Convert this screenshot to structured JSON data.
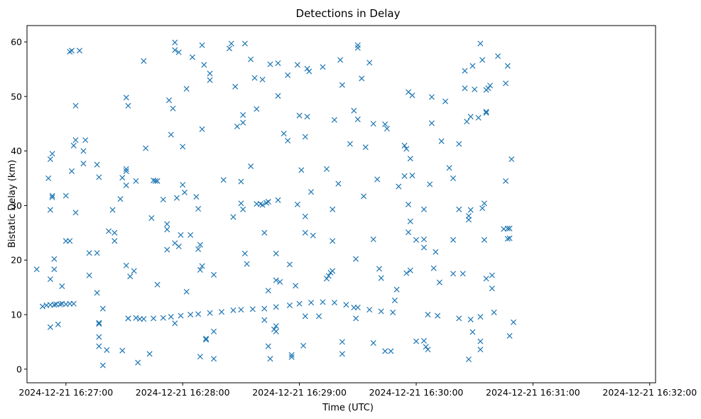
{
  "chart_data": {
    "type": "scatter",
    "title": "Detections in Delay",
    "xlabel": "Time (UTC)",
    "ylabel": "Bistatic Delay (km)",
    "marker": "x",
    "color": "#1f77b4",
    "xlim_seconds_after_16_26_00": [
      40,
      363
    ],
    "ylim": [
      -2.5,
      63
    ],
    "grid": false,
    "x_ticks": [
      {
        "value": 60,
        "label": "2024-12-21 16:27:00"
      },
      {
        "value": 120,
        "label": "2024-12-21 16:28:00"
      },
      {
        "value": 180,
        "label": "2024-12-21 16:29:00"
      },
      {
        "value": 240,
        "label": "2024-12-21 16:30:00"
      },
      {
        "value": 300,
        "label": "2024-12-21 16:31:00"
      },
      {
        "value": 360,
        "label": "2024-12-21 16:32:00"
      }
    ],
    "y_ticks": [
      {
        "value": 0,
        "label": "0"
      },
      {
        "value": 10,
        "label": "10"
      },
      {
        "value": 20,
        "label": "20"
      },
      {
        "value": 30,
        "label": "30"
      },
      {
        "value": 40,
        "label": "40"
      },
      {
        "value": 50,
        "label": "50"
      },
      {
        "value": 60,
        "label": "60"
      }
    ],
    "x_units": "seconds after 2024-12-21 16:26:00 UTC",
    "points": [
      [
        45,
        18.3
      ],
      [
        51,
        35
      ],
      [
        52,
        38.5
      ],
      [
        52,
        16.5
      ],
      [
        52,
        7.7
      ],
      [
        52,
        29.2
      ],
      [
        53,
        39.5
      ],
      [
        53,
        31.5
      ],
      [
        53,
        31.8
      ],
      [
        54,
        18.3
      ],
      [
        54,
        20.2
      ],
      [
        56,
        8.2
      ],
      [
        58,
        15.2
      ],
      [
        60,
        31.8
      ],
      [
        60,
        23.5
      ],
      [
        62,
        23.5
      ],
      [
        62,
        58.2
      ],
      [
        63,
        58.4
      ],
      [
        63,
        36.3
      ],
      [
        64,
        41
      ],
      [
        64,
        12
      ],
      [
        65,
        28.7
      ],
      [
        65,
        42
      ],
      [
        65,
        48.3
      ],
      [
        67,
        58.4
      ],
      [
        69,
        40
      ],
      [
        69,
        37.7
      ],
      [
        70,
        42
      ],
      [
        72,
        17.2
      ],
      [
        72,
        21.3
      ],
      [
        76,
        21.3
      ],
      [
        76,
        14
      ],
      [
        76,
        37.5
      ],
      [
        77,
        35.2
      ],
      [
        77,
        8.3
      ],
      [
        77,
        8.5
      ],
      [
        77,
        5.9
      ],
      [
        77,
        4.2
      ],
      [
        79,
        11.1
      ],
      [
        79,
        0.7
      ],
      [
        81,
        3.5
      ],
      [
        82,
        25.3
      ],
      [
        84,
        29.2
      ],
      [
        85,
        23.5
      ],
      [
        85,
        25
      ],
      [
        88,
        31.2
      ],
      [
        89,
        35.1
      ],
      [
        89,
        3.4
      ],
      [
        91,
        49.8
      ],
      [
        91,
        36.7
      ],
      [
        91,
        36.3
      ],
      [
        91,
        33.7
      ],
      [
        91,
        19
      ],
      [
        92,
        9.3
      ],
      [
        92,
        48.3
      ],
      [
        93,
        17
      ],
      [
        95,
        18
      ],
      [
        96,
        34.5
      ],
      [
        97,
        1.2
      ],
      [
        98,
        9.2
      ],
      [
        100,
        56.5
      ],
      [
        101,
        40.5
      ],
      [
        103,
        2.8
      ],
      [
        104,
        27.7
      ],
      [
        105,
        34.6
      ],
      [
        106,
        34.5
      ],
      [
        107,
        34.5
      ],
      [
        107,
        15.5
      ],
      [
        110,
        31.1
      ],
      [
        112,
        26.6
      ],
      [
        112,
        25.6
      ],
      [
        112,
        21.9
      ],
      [
        113,
        49.3
      ],
      [
        114,
        43
      ],
      [
        115,
        47.8
      ],
      [
        116,
        59.9
      ],
      [
        116,
        58.5
      ],
      [
        116,
        23.1
      ],
      [
        116,
        8.4
      ],
      [
        117,
        31.4
      ],
      [
        118,
        58.1
      ],
      [
        118,
        22.5
      ],
      [
        119,
        24.6
      ],
      [
        120,
        33.8
      ],
      [
        120,
        40.8
      ],
      [
        121,
        32.4
      ],
      [
        122,
        51.4
      ],
      [
        122,
        14.2
      ],
      [
        124,
        24.6
      ],
      [
        125,
        57.2
      ],
      [
        127,
        31.6
      ],
      [
        128,
        29.4
      ],
      [
        128,
        22
      ],
      [
        129,
        22.8
      ],
      [
        129,
        18.2
      ],
      [
        129,
        2.3
      ],
      [
        130,
        59.4
      ],
      [
        130,
        44
      ],
      [
        130,
        18.9
      ],
      [
        131,
        55.8
      ],
      [
        132,
        5.6
      ],
      [
        132,
        5.4
      ],
      [
        134,
        54.2
      ],
      [
        134,
        53
      ],
      [
        136,
        17.3
      ],
      [
        136,
        6.9
      ],
      [
        136,
        1.9
      ],
      [
        141,
        34.7
      ],
      [
        144,
        58.8
      ],
      [
        145,
        59.7
      ],
      [
        146,
        27.9
      ],
      [
        147,
        51.8
      ],
      [
        148,
        44.5
      ],
      [
        150,
        34.4
      ],
      [
        150,
        30.4
      ],
      [
        151,
        29.3
      ],
      [
        151,
        45.2
      ],
      [
        151,
        46.6
      ],
      [
        152,
        21.2
      ],
      [
        152,
        59.7
      ],
      [
        153,
        19.3
      ],
      [
        155,
        56.8
      ],
      [
        155,
        37.2
      ],
      [
        157,
        53.4
      ],
      [
        158,
        30.3
      ],
      [
        158,
        47.7
      ],
      [
        160,
        30.3
      ],
      [
        161,
        53.1
      ],
      [
        161,
        30.1
      ],
      [
        162,
        25
      ],
      [
        162,
        9
      ],
      [
        163,
        30.5
      ],
      [
        164,
        30.7
      ],
      [
        164,
        14.4
      ],
      [
        164,
        4.2
      ],
      [
        165,
        55.9
      ],
      [
        165,
        1.9
      ],
      [
        167,
        7.3
      ],
      [
        168,
        21.2
      ],
      [
        168,
        16.3
      ],
      [
        168,
        7.9
      ],
      [
        168,
        6.9
      ],
      [
        169,
        56.1
      ],
      [
        169,
        31
      ],
      [
        169,
        50.1
      ],
      [
        170,
        16
      ],
      [
        172,
        43.2
      ],
      [
        174,
        53.9
      ],
      [
        174,
        41.9
      ],
      [
        175,
        19.2
      ],
      [
        176,
        2.2
      ],
      [
        176,
        2.6
      ],
      [
        178,
        15.3
      ],
      [
        179,
        55.8
      ],
      [
        179,
        30.2
      ],
      [
        180,
        46.5
      ],
      [
        181,
        36.5
      ],
      [
        182,
        4.3
      ],
      [
        183,
        25
      ],
      [
        183,
        28
      ],
      [
        183,
        42.6
      ],
      [
        183,
        9.7
      ],
      [
        184,
        46.3
      ],
      [
        184,
        55.1
      ],
      [
        185,
        54.6
      ],
      [
        186,
        32.5
      ],
      [
        187,
        24.5
      ],
      [
        190,
        9.7
      ],
      [
        192,
        55.4
      ],
      [
        194,
        36.7
      ],
      [
        194,
        16.6
      ],
      [
        195,
        17.1
      ],
      [
        196,
        17.7
      ],
      [
        197,
        23.5
      ],
      [
        197,
        29.3
      ],
      [
        197,
        18
      ],
      [
        198,
        45.7
      ],
      [
        200,
        34
      ],
      [
        201,
        56.7
      ],
      [
        202,
        52.1
      ],
      [
        202,
        5
      ],
      [
        202,
        2.8
      ],
      [
        206,
        41.3
      ],
      [
        208,
        47.4
      ],
      [
        208,
        11.3
      ],
      [
        209,
        20.2
      ],
      [
        209,
        9.3
      ],
      [
        210,
        59.4
      ],
      [
        210,
        58.9
      ],
      [
        210,
        45.8
      ],
      [
        212,
        53.3
      ],
      [
        213,
        31.7
      ],
      [
        214,
        40.7
      ],
      [
        216,
        56.2
      ],
      [
        218,
        23.8
      ],
      [
        218,
        4.8
      ],
      [
        218,
        45
      ],
      [
        220,
        34.8
      ],
      [
        221,
        18.4
      ],
      [
        222,
        16.7
      ],
      [
        224,
        44.9
      ],
      [
        224,
        3.3
      ],
      [
        225,
        44.1
      ],
      [
        227,
        3.3
      ],
      [
        229,
        12.6
      ],
      [
        230,
        14.6
      ],
      [
        231,
        33.5
      ],
      [
        234,
        35.4
      ],
      [
        234,
        41
      ],
      [
        235,
        40.4
      ],
      [
        235,
        17.6
      ],
      [
        236,
        30.2
      ],
      [
        236,
        25.1
      ],
      [
        236,
        50.8
      ],
      [
        237,
        27.1
      ],
      [
        237,
        18.1
      ],
      [
        237,
        38.6
      ],
      [
        238,
        35.5
      ],
      [
        238,
        50.2
      ],
      [
        240,
        23.7
      ],
      [
        240,
        5.1
      ],
      [
        244,
        29.3
      ],
      [
        244,
        23.8
      ],
      [
        244,
        22.3
      ],
      [
        244,
        5.2
      ],
      [
        245,
        4.1
      ],
      [
        246,
        3.6
      ],
      [
        247,
        33.9
      ],
      [
        248,
        49.9
      ],
      [
        248,
        45.1
      ],
      [
        249,
        18.5
      ],
      [
        250,
        21.5
      ],
      [
        252,
        15.9
      ],
      [
        253,
        41.8
      ],
      [
        255,
        49.1
      ],
      [
        257,
        36.9
      ],
      [
        259,
        35
      ],
      [
        259,
        23.7
      ],
      [
        259,
        17.5
      ],
      [
        262,
        29.3
      ],
      [
        262,
        41.3
      ],
      [
        264,
        17.5
      ],
      [
        265,
        54.7
      ],
      [
        265,
        51.5
      ],
      [
        266,
        45.4
      ],
      [
        267,
        28.1
      ],
      [
        267,
        27.4
      ],
      [
        267,
        1.8
      ],
      [
        268,
        29.2
      ],
      [
        268,
        46.3
      ],
      [
        269,
        55.6
      ],
      [
        269,
        6.8
      ],
      [
        270,
        51.3
      ],
      [
        272,
        46.1
      ],
      [
        273,
        59.7
      ],
      [
        274,
        56.7
      ],
      [
        274,
        29.5
      ],
      [
        275,
        30.4
      ],
      [
        275,
        23.7
      ],
      [
        276,
        16.6
      ],
      [
        276,
        47
      ],
      [
        276,
        47.2
      ],
      [
        276,
        51.2
      ],
      [
        277,
        51.5
      ],
      [
        278,
        52
      ],
      [
        279,
        17.2
      ],
      [
        279,
        14.8
      ],
      [
        280,
        10.4
      ],
      [
        282,
        57.4
      ],
      [
        285,
        25.7
      ],
      [
        286,
        34.5
      ],
      [
        286,
        52.4
      ],
      [
        287,
        55.6
      ],
      [
        287,
        25.8
      ],
      [
        287,
        23.9
      ],
      [
        288,
        25.8
      ],
      [
        288,
        24
      ],
      [
        288,
        6.1
      ],
      [
        289,
        38.5
      ],
      [
        290,
        8.6
      ],
      [
        273,
        5.1
      ],
      [
        273,
        3.6
      ],
      [
        48,
        11.5
      ],
      [
        50,
        11.7
      ],
      [
        52,
        11.8
      ],
      [
        54,
        11.8
      ],
      [
        55,
        11.9
      ],
      [
        57,
        11.9
      ],
      [
        58,
        12
      ],
      [
        60,
        11.9
      ],
      [
        62,
        12
      ],
      [
        92,
        9.3
      ],
      [
        96,
        9.4
      ],
      [
        100,
        9.2
      ],
      [
        105,
        9.3
      ],
      [
        110,
        9.4
      ],
      [
        114,
        9.6
      ],
      [
        119,
        9.8
      ],
      [
        124,
        10
      ],
      [
        128,
        10.1
      ],
      [
        134,
        10.3
      ],
      [
        140,
        10.5
      ],
      [
        146,
        10.8
      ],
      [
        150,
        10.9
      ],
      [
        156,
        11
      ],
      [
        162,
        11.1
      ],
      [
        168,
        11.4
      ],
      [
        175,
        11.7
      ],
      [
        180,
        12
      ],
      [
        186,
        12.2
      ],
      [
        192,
        12.3
      ],
      [
        198,
        12.2
      ],
      [
        204,
        11.8
      ],
      [
        210,
        11.3
      ],
      [
        216,
        10.9
      ],
      [
        222,
        10.6
      ],
      [
        228,
        10.4
      ],
      [
        246,
        10
      ],
      [
        251,
        9.8
      ],
      [
        262,
        9.3
      ],
      [
        268,
        9.1
      ],
      [
        273,
        9.6
      ]
    ]
  }
}
